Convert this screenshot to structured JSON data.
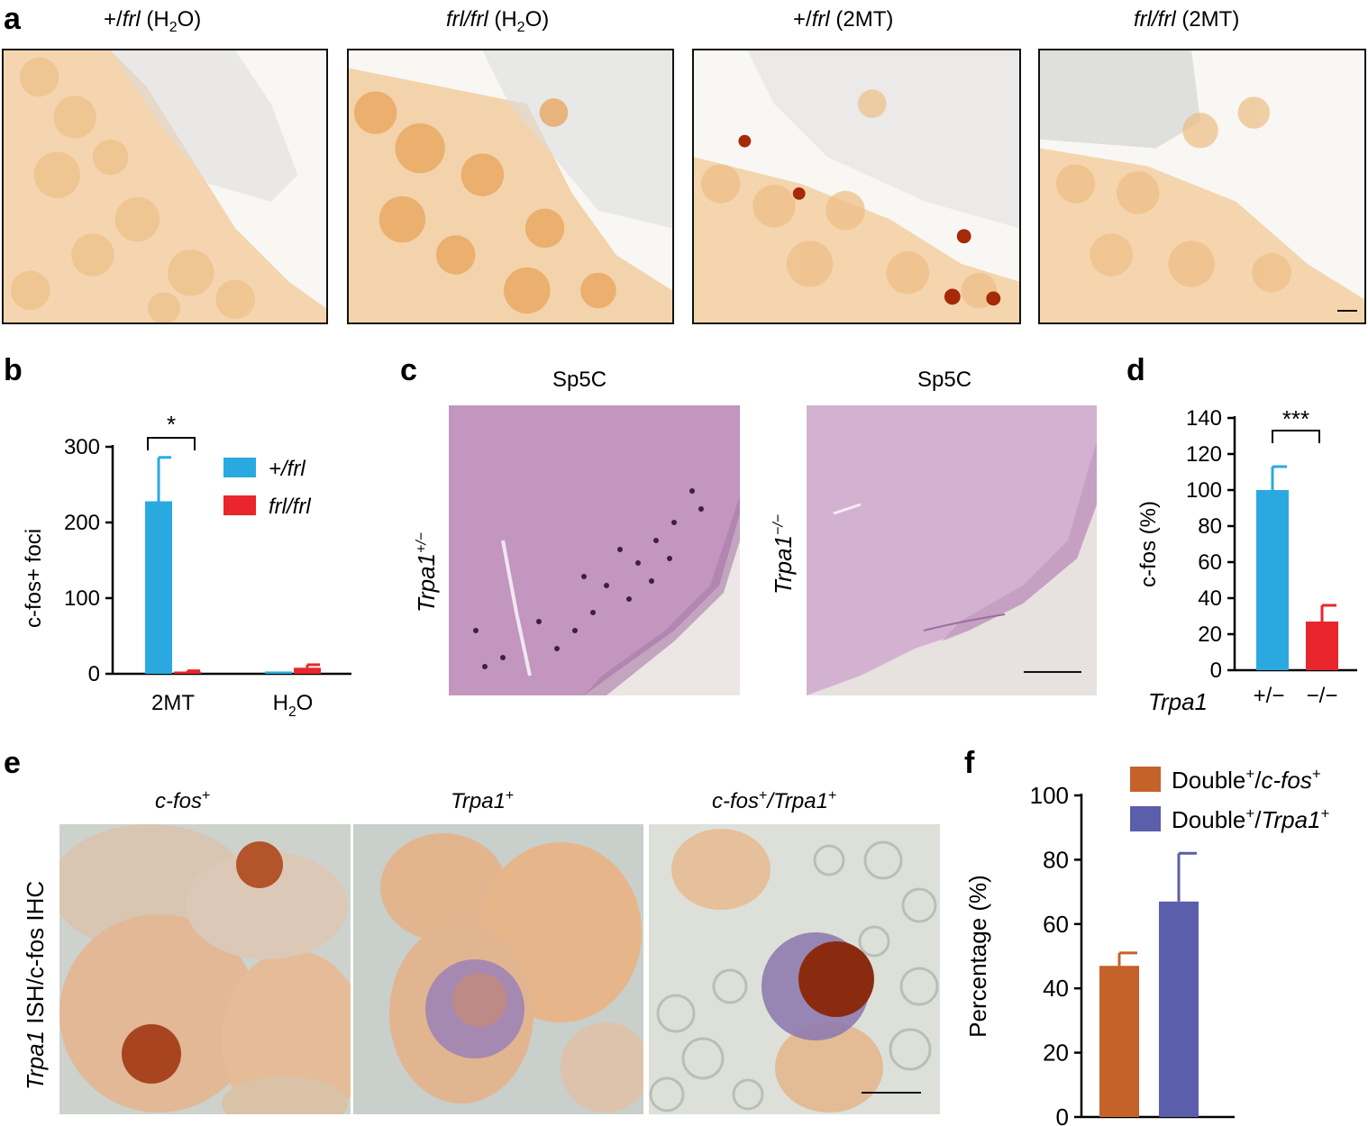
{
  "panel_a": {
    "label": "a",
    "images": [
      {
        "title": "+/frl (H₂O)",
        "segments": [
          {
            "t": "+/"
          },
          {
            "t": "frl",
            "i": true
          },
          {
            "t": " (H"
          },
          {
            "t": "2",
            "sub": true
          },
          {
            "t": "O)"
          }
        ]
      },
      {
        "title": "frl/frl (H₂O)",
        "segments": [
          {
            "t": "frl/frl",
            "i": true
          },
          {
            "t": " (H"
          },
          {
            "t": "2",
            "sub": true
          },
          {
            "t": "O)"
          }
        ]
      },
      {
        "title": "+/frl (2MT)",
        "segments": [
          {
            "t": "+/"
          },
          {
            "t": "frl",
            "i": true
          },
          {
            "t": " (2MT)"
          }
        ]
      },
      {
        "title": "frl/frl (2MT)",
        "segments": [
          {
            "t": "frl/frl",
            "i": true
          },
          {
            "t": " (2MT)"
          }
        ]
      }
    ]
  },
  "panel_b": {
    "label": "b"
  },
  "panel_c": {
    "label": "c",
    "images": [
      {
        "title": "Sp5C",
        "side": "Trpa1",
        "side_sup": "+/−"
      },
      {
        "title": "Sp5C",
        "side": "Trpa1",
        "side_sup": "−/−"
      }
    ]
  },
  "panel_d": {
    "label": "d"
  },
  "panel_e": {
    "label": "e",
    "side_label_italic": "Trpa1",
    "side_label_rest": " ISH/c-fos IHC",
    "images": [
      {
        "segments": [
          {
            "t": "c-fos",
            "i": true
          },
          {
            "t": "+",
            "sup": true
          }
        ]
      },
      {
        "segments": [
          {
            "t": "Trpa1",
            "i": true
          },
          {
            "t": "+",
            "sup": true
          }
        ]
      },
      {
        "segments": [
          {
            "t": "c-fos",
            "i": true
          },
          {
            "t": "+",
            "sup": true
          },
          {
            "t": "/Trpa1",
            "i": true
          },
          {
            "t": "+",
            "sup": true
          }
        ]
      }
    ]
  },
  "panel_f": {
    "label": "f"
  },
  "chart_data": [
    {
      "panel": "b",
      "type": "bar",
      "categories": [
        "2MT",
        "H2O"
      ],
      "category_segments": [
        [
          {
            "t": "2MT"
          }
        ],
        [
          {
            "t": "H"
          },
          {
            "t": "2",
            "sub": true
          },
          {
            "t": "O"
          }
        ]
      ],
      "series": [
        {
          "name": "+/frl",
          "color": "#2aa9e0",
          "values": [
            228,
            3
          ],
          "errors": [
            58,
            0
          ]
        },
        {
          "name": "frl/frl",
          "color": "#e8262b",
          "values": [
            3,
            8
          ],
          "errors": [
            1,
            4
          ]
        }
      ],
      "ylabel": "c-fos+ foci",
      "ylim": [
        0,
        300
      ],
      "yticks": [
        0,
        100,
        200,
        300
      ],
      "significance": [
        {
          "text": "*",
          "category": "2MT"
        }
      ],
      "legend": "top-right"
    },
    {
      "panel": "d",
      "type": "bar",
      "categories": [
        "+/−",
        "−/−"
      ],
      "xprefix": "Trpa1",
      "values": [
        100,
        27
      ],
      "errors": [
        13,
        9
      ],
      "colors": [
        "#2aa9e0",
        "#e8262b"
      ],
      "ylabel": "c-fos (%)",
      "ylim": [
        0,
        140
      ],
      "yticks": [
        0,
        20,
        40,
        60,
        80,
        100,
        120,
        140
      ],
      "significance": [
        {
          "text": "***"
        }
      ]
    },
    {
      "panel": "f",
      "type": "bar",
      "categories": [
        "Double+/c-fos+",
        "Double+/Trpa1+"
      ],
      "series": [
        {
          "name": "Double+/c-fos+",
          "color": "#c4622a",
          "value": 47,
          "error": 4,
          "segments": [
            {
              "t": "Double"
            },
            {
              "t": "+",
              "sup": true
            },
            {
              "t": "/"
            },
            {
              "t": "c-fos",
              "i": true
            },
            {
              "t": "+",
              "sup": true
            }
          ]
        },
        {
          "name": "Double+/Trpa1+",
          "color": "#5b5eaa",
          "value": 67,
          "error": 15,
          "segments": [
            {
              "t": "Double"
            },
            {
              "t": "+",
              "sup": true
            },
            {
              "t": "/"
            },
            {
              "t": "Trpa1",
              "i": true
            },
            {
              "t": "+",
              "sup": true
            }
          ]
        }
      ],
      "ylabel": "Percentage (%)",
      "ylim": [
        0,
        100
      ],
      "yticks": [
        0,
        20,
        40,
        60,
        80,
        100
      ],
      "legend": "top"
    }
  ]
}
